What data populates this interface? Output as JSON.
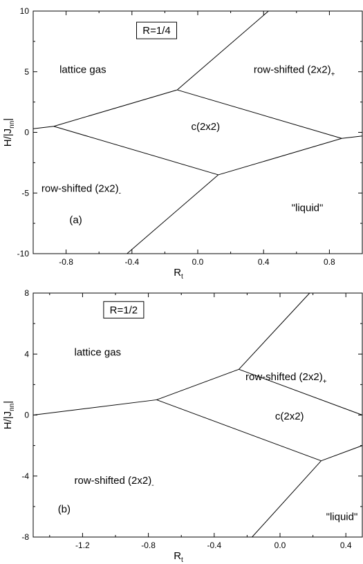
{
  "chart_data": [
    {
      "type": "line",
      "panel_label": "(a)",
      "title_box": "R=1/4",
      "xlabel": "R",
      "xlabel_sub": "t",
      "ylabel": "H/|J",
      "ylabel_sub": "nn",
      "ylabel_end": "|",
      "xlim": [
        -1.0,
        1.0
      ],
      "ylim": [
        -10,
        10
      ],
      "xticks": [
        -0.8,
        -0.4,
        0.0,
        0.4,
        0.8
      ],
      "xtick_labels": [
        "-0.8",
        "-0.4",
        "0.0",
        "0.4",
        "0.8"
      ],
      "yticks": [
        -10,
        -5,
        0,
        5,
        10
      ],
      "ytick_labels": [
        "-10",
        "-5",
        "0",
        "5",
        "10"
      ],
      "series": [
        {
          "x": [
            -1.0,
            -0.875
          ],
          "y": [
            0.3,
            0.5
          ]
        },
        {
          "x": [
            -0.875,
            -0.125
          ],
          "y": [
            0.5,
            3.5
          ]
        },
        {
          "x": [
            -0.875,
            0.125
          ],
          "y": [
            0.5,
            -3.5
          ]
        },
        {
          "x": [
            -0.125,
            0.875
          ],
          "y": [
            3.5,
            -0.5
          ]
        },
        {
          "x": [
            0.125,
            0.875
          ],
          "y": [
            -3.5,
            -0.5
          ]
        },
        {
          "x": [
            -0.125,
            0.43
          ],
          "y": [
            3.5,
            10
          ]
        },
        {
          "x": [
            0.125,
            -0.43
          ],
          "y": [
            -3.5,
            -10
          ]
        },
        {
          "x": [
            0.875,
            1.0
          ],
          "y": [
            -0.5,
            -0.3
          ]
        }
      ],
      "regions": [
        {
          "label": "lattice gas",
          "x": -0.84,
          "y": 4.9
        },
        {
          "main": "row-shifted (2x2)",
          "sub": "+",
          "x": 0.34,
          "y": 4.9
        },
        {
          "label": "c(2x2)",
          "x": -0.04,
          "y": 0.2
        },
        {
          "main": "row-shifted (2x2)",
          "sub": "-",
          "x": -0.95,
          "y": -4.9
        },
        {
          "label": "\"liquid\"",
          "x": 0.57,
          "y": -6.5
        }
      ],
      "tag_pos": {
        "x": -0.78,
        "y": -7.5
      },
      "box_pos": {
        "x": -0.25,
        "y": 8.4
      }
    },
    {
      "type": "line",
      "panel_label": "(b)",
      "title_box": "R=1/2",
      "xlabel": "R",
      "xlabel_sub": "t",
      "ylabel": "H/|J",
      "ylabel_sub": "nn",
      "ylabel_end": "|",
      "xlim": [
        -1.5,
        0.5
      ],
      "ylim": [
        -8,
        8
      ],
      "xticks": [
        -1.2,
        -0.8,
        -0.4,
        0.0,
        0.4
      ],
      "xtick_labels": [
        "-1.2",
        "-0.8",
        "-0.4",
        "0.0",
        "0.4"
      ],
      "yticks": [
        -8,
        -4,
        0,
        4,
        8
      ],
      "ytick_labels": [
        "-8",
        "-4",
        "0",
        "4",
        "8"
      ],
      "series": [
        {
          "x": [
            -1.5,
            -0.75
          ],
          "y": [
            0,
            1
          ]
        },
        {
          "x": [
            -0.75,
            -0.25
          ],
          "y": [
            1,
            3
          ]
        },
        {
          "x": [
            -0.75,
            0.25
          ],
          "y": [
            1,
            -3
          ]
        },
        {
          "x": [
            -0.25,
            0.5
          ],
          "y": [
            3,
            0
          ]
        },
        {
          "x": [
            -0.25,
            0.18
          ],
          "y": [
            3,
            8
          ]
        },
        {
          "x": [
            0.25,
            0.5
          ],
          "y": [
            -3,
            -2
          ]
        },
        {
          "x": [
            0.25,
            -0.17
          ],
          "y": [
            -3,
            -8
          ]
        }
      ],
      "regions": [
        {
          "label": "lattice gas",
          "x": -1.25,
          "y": 3.9
        },
        {
          "main": "row-shifted (2x2)",
          "sub": "+",
          "x": -0.21,
          "y": 2.3
        },
        {
          "label": "c(2x2)",
          "x": -0.03,
          "y": -0.3
        },
        {
          "main": "row-shifted (2x2)",
          "sub": "-",
          "x": -1.25,
          "y": -4.5
        },
        {
          "label": "\"liquid\"",
          "x": 0.28,
          "y": -6.9
        }
      ],
      "tag_pos": {
        "x": -1.35,
        "y": -6.4
      },
      "box_pos": {
        "x": -0.95,
        "y": 6.9
      }
    }
  ]
}
